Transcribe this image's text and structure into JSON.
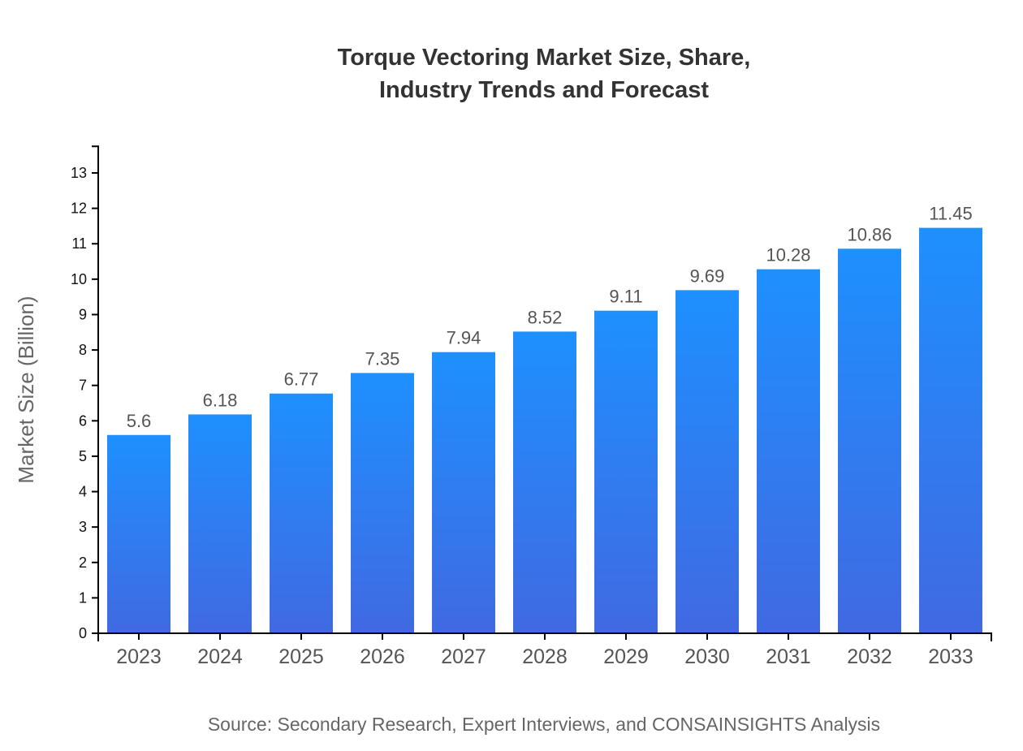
{
  "chart_data": {
    "type": "bar",
    "title_lines": [
      "Torque Vectoring Market Size, Share,",
      "Industry Trends and Forecast"
    ],
    "xlabel": "",
    "ylabel": "Market Size (Billion)",
    "categories": [
      "2023",
      "2024",
      "2025",
      "2026",
      "2027",
      "2028",
      "2029",
      "2030",
      "2031",
      "2032",
      "2033"
    ],
    "values": [
      5.6,
      6.18,
      6.77,
      7.35,
      7.94,
      8.52,
      9.11,
      9.69,
      10.28,
      10.86,
      11.45
    ],
    "data_labels": [
      "5.6",
      "6.18",
      "6.77",
      "7.35",
      "7.94",
      "8.52",
      "9.11",
      "9.69",
      "10.28",
      "10.86",
      "11.45"
    ],
    "yticks": [
      0,
      1,
      2,
      3,
      4,
      5,
      6,
      7,
      8,
      9,
      10,
      11,
      12,
      13
    ],
    "ylim": [
      0,
      13.75
    ],
    "grid": false,
    "legend": "none",
    "colors": {
      "bar_top": "#1e90ff",
      "bar_bottom": "#4169e1",
      "label": "#555555",
      "title": "#333333"
    },
    "source": "Source: Secondary Research, Expert Interviews, and CONSAINSIGHTS Analysis"
  }
}
